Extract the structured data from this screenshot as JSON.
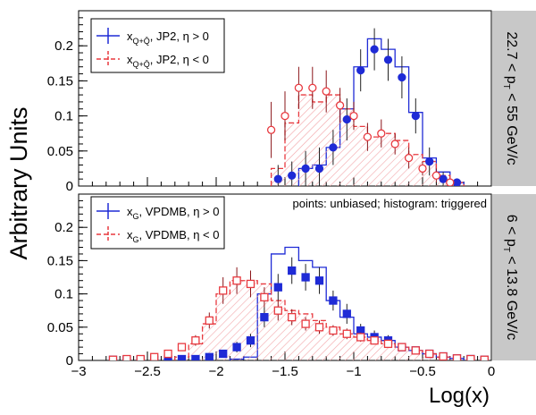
{
  "figure": {
    "ylabel": "Arbitrary Units",
    "xlabel": "Log(x)",
    "note": "points: unbiased; histogram: triggered"
  },
  "colors": {
    "blue": "#1f2bd6",
    "red": "#e8393f",
    "hatch": "#f2a5a8",
    "strip": "#c8c8c8"
  },
  "chart_data": [
    {
      "type": "histogram+points",
      "panel": "top",
      "strip_label": "22.7 < pT < 55 GeV/c",
      "xlim": [
        -3,
        0
      ],
      "ylim": [
        0,
        0.25
      ],
      "yticks": [
        0,
        0.05,
        0.1,
        0.15,
        0.2
      ],
      "ytick_labels": [
        "0",
        "0.05",
        "0.1",
        "0.15",
        "0.2"
      ],
      "legend": {
        "placement": "top-left",
        "entries": [
          "x_{Q+Qbar}, JP2, η > 0",
          "x_{Q+Qbar}, JP2, η < 0"
        ]
      },
      "series": [
        {
          "name": "x_{Q+Qbar}, JP2, η > 0",
          "style": "histogram",
          "color": "#1f2bd6",
          "bins": [
            [
              -1.4,
              -1.3,
              0.025
            ],
            [
              -1.3,
              -1.2,
              0.03
            ],
            [
              -1.2,
              -1.1,
              0.055
            ],
            [
              -1.1,
              -1.0,
              0.11
            ],
            [
              -1.0,
              -0.9,
              0.17
            ],
            [
              -0.9,
              -0.8,
              0.21
            ],
            [
              -0.8,
              -0.7,
              0.195
            ],
            [
              -0.7,
              -0.6,
              0.17
            ],
            [
              -0.6,
              -0.5,
              0.105
            ],
            [
              -0.5,
              -0.4,
              0.04
            ],
            [
              -0.4,
              -0.3,
              0.02
            ],
            [
              -0.3,
              -0.2,
              0.005
            ]
          ]
        },
        {
          "name": "x_{Q+Qbar}, JP2, η < 0",
          "style": "hatched-histogram",
          "color": "#e8393f",
          "bins": [
            [
              -1.6,
              -1.5,
              0.025
            ],
            [
              -1.5,
              -1.4,
              0.09
            ],
            [
              -1.4,
              -1.3,
              0.13
            ],
            [
              -1.3,
              -1.2,
              0.12
            ],
            [
              -1.2,
              -1.1,
              0.13
            ],
            [
              -1.1,
              -1.0,
              0.11
            ],
            [
              -1.0,
              -0.9,
              0.085
            ],
            [
              -0.9,
              -0.8,
              0.07
            ],
            [
              -0.8,
              -0.7,
              0.075
            ],
            [
              -0.7,
              -0.6,
              0.065
            ],
            [
              -0.6,
              -0.5,
              0.045
            ],
            [
              -0.5,
              -0.4,
              0.035
            ],
            [
              -0.4,
              -0.3,
              0.015
            ],
            [
              -0.3,
              -0.2,
              0.005
            ]
          ]
        },
        {
          "name": "η > 0 unbiased",
          "style": "points",
          "color": "#1f2bd6",
          "points": [
            [
              -1.55,
              0.01,
              0.02
            ],
            [
              -1.45,
              0.015,
              0.02
            ],
            [
              -1.35,
              0.025,
              0.025
            ],
            [
              -1.25,
              0.025,
              0.03
            ],
            [
              -1.15,
              0.055,
              0.025
            ],
            [
              -1.05,
              0.095,
              0.03
            ],
            [
              -0.95,
              0.165,
              0.03
            ],
            [
              -0.85,
              0.195,
              0.03
            ],
            [
              -0.75,
              0.18,
              0.03
            ],
            [
              -0.65,
              0.155,
              0.03
            ],
            [
              -0.55,
              0.1,
              0.025
            ],
            [
              -0.45,
              0.035,
              0.02
            ],
            [
              -0.35,
              0.01,
              0.01
            ],
            [
              -0.25,
              0.005,
              0.005
            ]
          ]
        },
        {
          "name": "η < 0 unbiased",
          "style": "points",
          "color": "#e8393f",
          "points": [
            [
              -1.6,
              0.08,
              0.04
            ],
            [
              -1.5,
              0.1,
              0.035
            ],
            [
              -1.4,
              0.14,
              0.03
            ],
            [
              -1.3,
              0.14,
              0.03
            ],
            [
              -1.2,
              0.135,
              0.03
            ],
            [
              -1.1,
              0.115,
              0.025
            ],
            [
              -1.0,
              0.1,
              0.02
            ],
            [
              -0.9,
              0.07,
              0.02
            ],
            [
              -0.8,
              0.075,
              0.02
            ],
            [
              -0.7,
              0.06,
              0.015
            ],
            [
              -0.6,
              0.04,
              0.015
            ],
            [
              -0.5,
              0.025,
              0.01
            ],
            [
              -0.4,
              0.015,
              0.01
            ],
            [
              -0.3,
              0.005,
              0.005
            ]
          ]
        }
      ]
    },
    {
      "type": "histogram+points",
      "panel": "bottom",
      "strip_label": "6 < pT < 13.8 GeV/c",
      "xlim": [
        -3,
        0
      ],
      "ylim": [
        0,
        0.25
      ],
      "yticks": [
        0,
        0.05,
        0.1,
        0.15,
        0.2
      ],
      "ytick_labels": [
        "0",
        "0.05",
        "0.1",
        "0.15",
        "0.2"
      ],
      "xticks": [
        -3,
        -2.5,
        -2,
        -1.5,
        -1,
        -0.5,
        0
      ],
      "xtick_labels": [
        "−3",
        "−2.5",
        "−2",
        "−1.5",
        "−1",
        "−0.5",
        "0"
      ],
      "legend": {
        "placement": "top-left",
        "entries": [
          "x_G, VPDMB, η > 0",
          "x_G, VPDMB, η < 0"
        ]
      },
      "series": [
        {
          "name": "x_G, VPDMB, η > 0",
          "style": "histogram",
          "color": "#1f2bd6",
          "bins": [
            [
              -1.9,
              -1.8,
              0.002
            ],
            [
              -1.8,
              -1.7,
              0.005
            ],
            [
              -1.7,
              -1.6,
              0.1
            ],
            [
              -1.6,
              -1.5,
              0.16
            ],
            [
              -1.5,
              -1.4,
              0.17
            ],
            [
              -1.4,
              -1.3,
              0.15
            ],
            [
              -1.3,
              -1.2,
              0.14
            ],
            [
              -1.2,
              -1.1,
              0.09
            ],
            [
              -1.1,
              -1.0,
              0.065
            ],
            [
              -1.0,
              -0.9,
              0.04
            ],
            [
              -0.9,
              -0.8,
              0.035
            ],
            [
              -0.8,
              -0.7,
              0.03
            ],
            [
              -0.7,
              -0.6,
              0.02
            ],
            [
              -0.6,
              -0.5,
              0.015
            ],
            [
              -0.5,
              -0.4,
              0.01
            ],
            [
              -0.4,
              -0.3,
              0.005
            ],
            [
              -0.3,
              -0.2,
              0.003
            ]
          ]
        },
        {
          "name": "x_G, VPDMB, η < 0",
          "style": "hatched-histogram",
          "color": "#e8393f",
          "bins": [
            [
              -2.3,
              -2.2,
              0.005
            ],
            [
              -2.2,
              -2.1,
              0.025
            ],
            [
              -2.1,
              -2.0,
              0.055
            ],
            [
              -2.0,
              -1.9,
              0.1
            ],
            [
              -1.9,
              -1.8,
              0.12
            ],
            [
              -1.8,
              -1.7,
              0.12
            ],
            [
              -1.7,
              -1.6,
              0.115
            ],
            [
              -1.6,
              -1.5,
              0.09
            ],
            [
              -1.5,
              -1.4,
              0.075
            ],
            [
              -1.4,
              -1.3,
              0.07
            ],
            [
              -1.3,
              -1.2,
              0.06
            ],
            [
              -1.2,
              -1.1,
              0.05
            ],
            [
              -1.1,
              -1.0,
              0.04
            ],
            [
              -1.0,
              -0.9,
              0.035
            ],
            [
              -0.9,
              -0.8,
              0.03
            ],
            [
              -0.8,
              -0.7,
              0.025
            ],
            [
              -0.7,
              -0.6,
              0.02
            ],
            [
              -0.6,
              -0.5,
              0.015
            ],
            [
              -0.5,
              -0.4,
              0.01
            ],
            [
              -0.4,
              -0.3,
              0.005
            ]
          ]
        },
        {
          "name": "η > 0 unbiased",
          "style": "points",
          "color": "#1f2bd6",
          "points": [
            [
              -2.75,
              0.001,
              0
            ],
            [
              -2.65,
              0.001,
              0
            ],
            [
              -2.55,
              0.001,
              0
            ],
            [
              -2.45,
              0.001,
              0
            ],
            [
              -2.35,
              0.001,
              0
            ],
            [
              -2.25,
              0.002,
              0
            ],
            [
              -2.15,
              0.002,
              0
            ],
            [
              -2.05,
              0.005,
              0.003
            ],
            [
              -1.95,
              0.01,
              0.005
            ],
            [
              -1.85,
              0.02,
              0.008
            ],
            [
              -1.75,
              0.03,
              0.01
            ],
            [
              -1.65,
              0.065,
              0.015
            ],
            [
              -1.55,
              0.11,
              0.02
            ],
            [
              -1.45,
              0.135,
              0.02
            ],
            [
              -1.35,
              0.125,
              0.02
            ],
            [
              -1.25,
              0.12,
              0.02
            ],
            [
              -1.15,
              0.09,
              0.015
            ],
            [
              -1.05,
              0.07,
              0.015
            ],
            [
              -0.95,
              0.045,
              0.01
            ],
            [
              -0.85,
              0.035,
              0.01
            ],
            [
              -0.75,
              0.03,
              0.008
            ],
            [
              -0.65,
              0.02,
              0.006
            ],
            [
              -0.55,
              0.015,
              0.005
            ],
            [
              -0.45,
              0.01,
              0.004
            ],
            [
              -0.35,
              0.006,
              0.003
            ],
            [
              -0.25,
              0.003,
              0.002
            ],
            [
              -0.15,
              0.002,
              0
            ],
            [
              -0.05,
              0.001,
              0
            ]
          ]
        },
        {
          "name": "η < 0 unbiased",
          "style": "points",
          "color": "#e8393f",
          "points": [
            [
              -2.75,
              0.001,
              0
            ],
            [
              -2.65,
              0.002,
              0
            ],
            [
              -2.55,
              0.002,
              0
            ],
            [
              -2.45,
              0.005,
              0
            ],
            [
              -2.35,
              0.01,
              0.003
            ],
            [
              -2.25,
              0.02,
              0.005
            ],
            [
              -2.15,
              0.03,
              0.008
            ],
            [
              -2.05,
              0.06,
              0.012
            ],
            [
              -1.95,
              0.105,
              0.02
            ],
            [
              -1.85,
              0.12,
              0.02
            ],
            [
              -1.75,
              0.115,
              0.02
            ],
            [
              -1.65,
              0.095,
              0.015
            ],
            [
              -1.55,
              0.075,
              0.015
            ],
            [
              -1.45,
              0.065,
              0.012
            ],
            [
              -1.35,
              0.055,
              0.01
            ],
            [
              -1.25,
              0.05,
              0.01
            ],
            [
              -1.15,
              0.045,
              0.008
            ],
            [
              -1.05,
              0.04,
              0.008
            ],
            [
              -0.95,
              0.035,
              0.007
            ],
            [
              -0.85,
              0.03,
              0.006
            ],
            [
              -0.75,
              0.025,
              0.005
            ],
            [
              -0.65,
              0.02,
              0.005
            ],
            [
              -0.55,
              0.015,
              0.004
            ],
            [
              -0.45,
              0.01,
              0.003
            ],
            [
              -0.35,
              0.006,
              0.002
            ],
            [
              -0.25,
              0.003,
              0.002
            ],
            [
              -0.15,
              0.002,
              0
            ],
            [
              -0.05,
              0.001,
              0
            ]
          ]
        }
      ]
    }
  ]
}
